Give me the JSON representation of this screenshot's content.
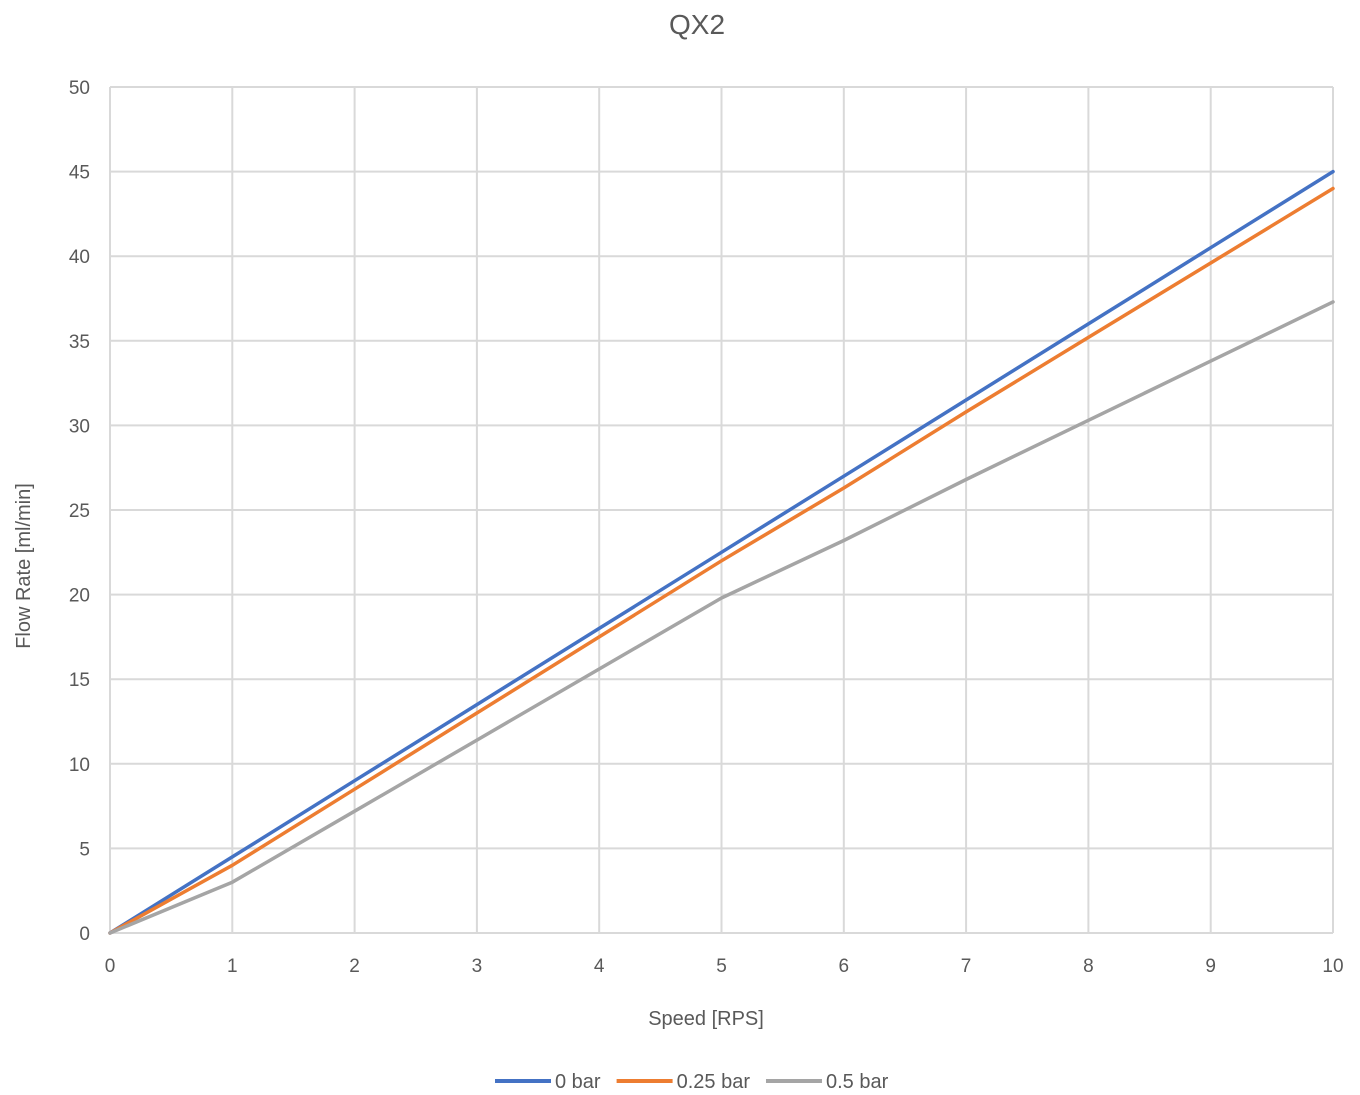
{
  "chart_data": {
    "type": "line",
    "title": "QX2",
    "xlabel": "Speed [RPS]",
    "ylabel": "Flow Rate [ml/min]",
    "xlim": [
      0,
      10
    ],
    "ylim": [
      0,
      50
    ],
    "xticks": [
      "0",
      "1",
      "2",
      "3",
      "4",
      "5",
      "6",
      "7",
      "8",
      "9",
      "10"
    ],
    "yticks": [
      "0",
      "5",
      "10",
      "15",
      "20",
      "25",
      "30",
      "35",
      "40",
      "45",
      "50"
    ],
    "grid": true,
    "legend_position": "bottom",
    "series": [
      {
        "name": "0 bar",
        "color": "#4472c4",
        "x": [
          0,
          1,
          2,
          3,
          4,
          5,
          6,
          7,
          8,
          9,
          10
        ],
        "y": [
          0,
          4.5,
          9.0,
          13.5,
          18.0,
          22.5,
          27.0,
          31.5,
          36.0,
          40.5,
          45.0
        ]
      },
      {
        "name": "0.25 bar",
        "color": "#ed7d31",
        "x": [
          0,
          1,
          2,
          3,
          4,
          5,
          6,
          7,
          8,
          9,
          10
        ],
        "y": [
          0,
          4.0,
          8.5,
          13.0,
          17.5,
          22.0,
          26.3,
          30.8,
          35.2,
          39.6,
          44.0
        ]
      },
      {
        "name": "0.5 bar",
        "color": "#a5a5a5",
        "x": [
          0,
          1,
          2,
          3,
          4,
          5,
          6,
          7,
          8,
          9,
          10
        ],
        "y": [
          0,
          3.0,
          7.2,
          11.4,
          15.6,
          19.8,
          23.2,
          26.8,
          30.3,
          33.8,
          37.3
        ]
      }
    ]
  }
}
